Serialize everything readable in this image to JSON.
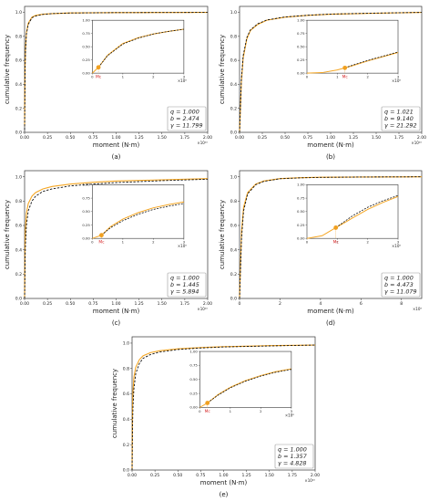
{
  "colors": {
    "fit": "#f5a623",
    "empirical": "#111111",
    "marker": "#f0a020",
    "mc": "#d62728",
    "box": "#999999"
  },
  "chart_data": [
    {
      "type": "line",
      "caption": "(a)",
      "xlabel": "moment (N·m)",
      "ylabel": "cumulative frequency",
      "x_exponent_label": "×10¹⁰",
      "xticks": [
        "0.00",
        "0.25",
        "0.50",
        "0.75",
        "1.00",
        "1.25",
        "1.50",
        "1.75",
        "2.00"
      ],
      "yticks": [
        "0.0",
        "0.2",
        "0.4",
        "0.6",
        "0.8",
        "1.0"
      ],
      "xlim": [
        0,
        2.0
      ],
      "ylim": [
        0,
        1.05
      ],
      "params": {
        "q": "q = 1.000",
        "b": "b = 2.474",
        "gamma": "γ = 11.799"
      },
      "inset": {
        "xticks": [
          "0",
          "1",
          "2",
          "3"
        ],
        "yticks": [
          "0.00",
          "0.25",
          "0.50",
          "0.75",
          "1.00"
        ],
        "x_exponent_label": "×10⁶",
        "xlim": [
          0,
          3
        ],
        "ylim": [
          0,
          1.0
        ],
        "mc_label": "Mc",
        "mc_x": 0.2,
        "mc_y": 0.11,
        "empirical": {
          "x": [
            0.2,
            0.5,
            1.0,
            1.5,
            2.0,
            2.5,
            3.0
          ],
          "y": [
            0.11,
            0.33,
            0.55,
            0.66,
            0.74,
            0.79,
            0.83
          ]
        },
        "fit": {
          "x": [
            0.0,
            0.2,
            0.5,
            1.0,
            1.5,
            2.0,
            2.5,
            3.0
          ],
          "y": [
            0.0,
            0.11,
            0.34,
            0.56,
            0.67,
            0.74,
            0.79,
            0.83
          ]
        }
      },
      "series": [
        {
          "x": [
            0,
            0.005,
            0.01,
            0.02,
            0.04,
            0.08,
            0.12,
            0.2,
            0.3,
            0.5,
            1.0,
            1.5,
            2.0
          ],
          "y": [
            0.05,
            0.55,
            0.7,
            0.83,
            0.91,
            0.96,
            0.975,
            0.985,
            0.99,
            0.995,
            0.998,
            0.999,
            1.0
          ]
        },
        {
          "x": [
            0,
            0.005,
            0.01,
            0.02,
            0.04,
            0.08,
            0.12,
            0.2,
            0.3,
            0.5,
            1.0,
            1.5,
            2.0
          ],
          "y": [
            0.02,
            0.5,
            0.68,
            0.82,
            0.9,
            0.955,
            0.97,
            0.983,
            0.99,
            0.995,
            0.998,
            0.999,
            1.0
          ]
        }
      ]
    },
    {
      "type": "line",
      "caption": "(b)",
      "xlabel": "moment (N·m)",
      "ylabel": "cumulative frequency",
      "x_exponent_label": "×10¹⁰",
      "xticks": [
        "0.00",
        "0.25",
        "0.50",
        "0.75",
        "1.00",
        "1.25",
        "1.50",
        "1.75",
        "2.00"
      ],
      "yticks": [
        "0.0",
        "0.2",
        "0.4",
        "0.6",
        "0.8",
        "1.0"
      ],
      "xlim": [
        0,
        2.0
      ],
      "ylim": [
        0,
        1.05
      ],
      "params": {
        "q": "q = 1.021",
        "b": "b = 9.140",
        "gamma": "γ = 21.292"
      },
      "inset": {
        "xticks": [
          "0",
          "1",
          "2",
          "3"
        ],
        "yticks": [
          "0.00",
          "0.25",
          "0.50",
          "0.75",
          "1.00"
        ],
        "x_exponent_label": "×10⁶",
        "xlim": [
          0,
          3
        ],
        "ylim": [
          0,
          1.0
        ],
        "mc_label": "Mc",
        "mc_x": 1.25,
        "mc_y": 0.1,
        "empirical": {
          "x": [
            1.25,
            1.5,
            2.0,
            2.5,
            3.0
          ],
          "y": [
            0.1,
            0.15,
            0.24,
            0.32,
            0.4
          ]
        },
        "fit": {
          "x": [
            0.0,
            0.5,
            1.0,
            1.25,
            1.5,
            2.0,
            2.5,
            3.0
          ],
          "y": [
            0.0,
            0.01,
            0.06,
            0.1,
            0.14,
            0.23,
            0.31,
            0.39
          ]
        }
      },
      "series": [
        {
          "x": [
            0,
            0.01,
            0.02,
            0.04,
            0.08,
            0.12,
            0.2,
            0.3,
            0.5,
            0.75,
            1.0,
            1.5,
            2.0
          ],
          "y": [
            0.0,
            0.2,
            0.42,
            0.62,
            0.78,
            0.85,
            0.9,
            0.935,
            0.96,
            0.975,
            0.985,
            0.993,
            1.0
          ]
        },
        {
          "x": [
            0,
            0.01,
            0.02,
            0.04,
            0.08,
            0.12,
            0.2,
            0.3,
            0.5,
            0.75,
            1.0,
            1.5,
            2.0
          ],
          "y": [
            0.0,
            0.22,
            0.44,
            0.64,
            0.79,
            0.855,
            0.905,
            0.937,
            0.962,
            0.976,
            0.986,
            0.994,
            1.0
          ]
        }
      ]
    },
    {
      "type": "line",
      "caption": "(c)",
      "xlabel": "moment (N·m)",
      "ylabel": "cumulative frequency",
      "x_exponent_label": "×10¹⁰",
      "xticks": [
        "0.00",
        "0.25",
        "0.50",
        "0.75",
        "1.00",
        "1.25",
        "1.50",
        "1.75",
        "2.00"
      ],
      "yticks": [
        "0.0",
        "0.2",
        "0.4",
        "0.6",
        "0.8",
        "1.0"
      ],
      "xlim": [
        0,
        2.0
      ],
      "ylim": [
        0,
        1.05
      ],
      "params": {
        "q": "q = 1.000",
        "b": "b = 1.445",
        "gamma": "γ = 5.894"
      },
      "inset": {
        "xticks": [
          "0",
          "1",
          "2",
          "3"
        ],
        "yticks": [
          "0.00",
          "0.25",
          "0.50",
          "0.75",
          "1.00"
        ],
        "x_exponent_label": "×10⁶",
        "xlim": [
          0,
          3
        ],
        "ylim": [
          0,
          1.0
        ],
        "mc_label": "Mc",
        "mc_x": 0.3,
        "mc_y": 0.06,
        "empirical": {
          "x": [
            0.3,
            0.6,
            1.0,
            1.5,
            2.0,
            2.5,
            3.0
          ],
          "y": [
            0.06,
            0.2,
            0.33,
            0.45,
            0.54,
            0.6,
            0.65
          ]
        },
        "fit": {
          "x": [
            0.0,
            0.3,
            0.6,
            1.0,
            1.5,
            2.0,
            2.5,
            3.0
          ],
          "y": [
            0.0,
            0.06,
            0.22,
            0.36,
            0.48,
            0.57,
            0.63,
            0.68
          ]
        }
      },
      "series": [
        {
          "x": [
            0,
            0.005,
            0.01,
            0.02,
            0.04,
            0.08,
            0.12,
            0.2,
            0.3,
            0.5,
            0.75,
            1.0,
            1.5,
            2.0
          ],
          "y": [
            0.0,
            0.45,
            0.58,
            0.7,
            0.78,
            0.84,
            0.87,
            0.9,
            0.92,
            0.94,
            0.955,
            0.965,
            0.975,
            0.985
          ]
        },
        {
          "x": [
            0,
            0.005,
            0.01,
            0.02,
            0.04,
            0.08,
            0.12,
            0.2,
            0.3,
            0.5,
            0.75,
            1.0,
            1.5,
            2.0
          ],
          "y": [
            0.0,
            0.3,
            0.45,
            0.6,
            0.72,
            0.8,
            0.84,
            0.88,
            0.9,
            0.925,
            0.94,
            0.952,
            0.968,
            0.98
          ]
        }
      ]
    },
    {
      "type": "line",
      "caption": "(d)",
      "xlabel": "moment (N·m)",
      "ylabel": "cumulative frequency",
      "x_exponent_label": "×10⁹",
      "xticks": [
        "0",
        "2",
        "4",
        "6",
        "8"
      ],
      "yticks": [
        "0.0",
        "0.2",
        "0.4",
        "0.6",
        "0.8",
        "1.0"
      ],
      "xlim": [
        0,
        9.0
      ],
      "ylim": [
        0,
        1.05
      ],
      "params": {
        "q": "q = 1.000",
        "b": "b = 4.473",
        "gamma": "γ = 11.079"
      },
      "inset": {
        "xticks": [
          "0",
          "1",
          "2",
          "3"
        ],
        "yticks": [
          "0.00",
          "0.25",
          "0.50",
          "0.75",
          "1.00"
        ],
        "x_exponent_label": "×10⁶",
        "xlim": [
          0,
          3
        ],
        "ylim": [
          0,
          1.0
        ],
        "mc_label": "Mc",
        "mc_x": 0.95,
        "mc_y": 0.2,
        "empirical": {
          "x": [
            0.95,
            1.2,
            1.5,
            2.0,
            2.5,
            3.0
          ],
          "y": [
            0.2,
            0.3,
            0.42,
            0.58,
            0.7,
            0.8
          ]
        },
        "fit": {
          "x": [
            0.0,
            0.5,
            0.95,
            1.2,
            1.5,
            2.0,
            2.5,
            3.0
          ],
          "y": [
            0.0,
            0.05,
            0.2,
            0.28,
            0.38,
            0.54,
            0.67,
            0.78
          ]
        }
      },
      "series": [
        {
          "x": [
            0,
            0.05,
            0.1,
            0.2,
            0.4,
            0.8,
            1.2,
            2.0,
            3.0,
            4.0,
            6.0,
            8.0,
            9.0
          ],
          "y": [
            0.0,
            0.3,
            0.55,
            0.75,
            0.87,
            0.94,
            0.965,
            0.985,
            0.992,
            0.996,
            0.998,
            0.999,
            1.0
          ]
        },
        {
          "x": [
            0,
            0.05,
            0.1,
            0.2,
            0.4,
            0.8,
            1.2,
            2.0,
            3.0,
            4.0,
            6.0,
            8.0,
            9.0
          ],
          "y": [
            0.0,
            0.25,
            0.5,
            0.72,
            0.86,
            0.935,
            0.962,
            0.984,
            0.991,
            0.995,
            0.998,
            0.999,
            1.0
          ]
        }
      ]
    },
    {
      "type": "line",
      "caption": "(e)",
      "xlabel": "moment (N·m)",
      "ylabel": "cumulative frequency",
      "x_exponent_label": "×10¹⁰",
      "xticks": [
        "0.00",
        "0.25",
        "0.50",
        "0.75",
        "1.00",
        "1.25",
        "1.50",
        "1.75",
        "2.00"
      ],
      "yticks": [
        "0.0",
        "0.2",
        "0.4",
        "0.6",
        "0.8",
        "1.0"
      ],
      "xlim": [
        0,
        2.0
      ],
      "ylim": [
        0,
        1.05
      ],
      "params": {
        "q": "q = 1.000",
        "b": "b = 1.357",
        "gamma": "γ = 4.828"
      },
      "inset": {
        "xticks": [
          "0",
          "1",
          "2",
          "3"
        ],
        "yticks": [
          "0.00",
          "0.25",
          "0.50",
          "0.75",
          "1.00"
        ],
        "x_exponent_label": "×10⁶",
        "xlim": [
          0,
          3
        ],
        "ylim": [
          0,
          1.0
        ],
        "mc_label": "Mc",
        "mc_x": 0.25,
        "mc_y": 0.08,
        "empirical": {
          "x": [
            0.25,
            0.6,
            1.0,
            1.5,
            2.0,
            2.5,
            3.0
          ],
          "y": [
            0.08,
            0.22,
            0.35,
            0.47,
            0.56,
            0.63,
            0.68
          ]
        },
        "fit": {
          "x": [
            0.0,
            0.25,
            0.6,
            1.0,
            1.5,
            2.0,
            2.5,
            3.0
          ],
          "y": [
            0.0,
            0.08,
            0.23,
            0.36,
            0.48,
            0.57,
            0.64,
            0.69
          ]
        }
      },
      "series": [
        {
          "x": [
            0,
            0.005,
            0.01,
            0.02,
            0.04,
            0.08,
            0.12,
            0.2,
            0.3,
            0.5,
            0.75,
            1.0,
            1.5,
            2.0
          ],
          "y": [
            0.0,
            0.5,
            0.62,
            0.73,
            0.81,
            0.87,
            0.9,
            0.925,
            0.94,
            0.955,
            0.965,
            0.972,
            0.98,
            0.985
          ]
        },
        {
          "x": [
            0,
            0.005,
            0.01,
            0.02,
            0.04,
            0.08,
            0.12,
            0.2,
            0.3,
            0.5,
            0.75,
            1.0,
            1.5,
            2.0
          ],
          "y": [
            0.0,
            0.35,
            0.5,
            0.64,
            0.76,
            0.84,
            0.88,
            0.91,
            0.93,
            0.95,
            0.962,
            0.97,
            0.978,
            0.985
          ]
        }
      ]
    }
  ]
}
